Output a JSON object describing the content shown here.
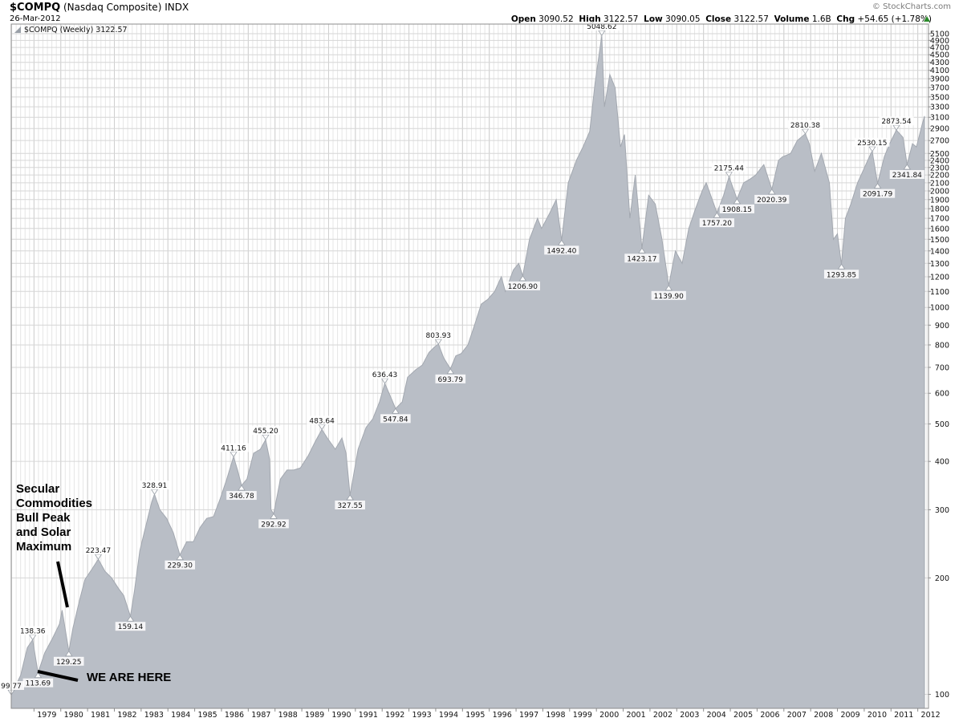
{
  "header": {
    "symbol": "$COMPQ",
    "name": "(Nasdaq Composite)",
    "exchange": "INDX",
    "date": "26-Mar-2012",
    "brand": "© StockCharts.com",
    "open_label": "Open",
    "open": "3090.52",
    "high_label": "High",
    "high": "3122.57",
    "low_label": "Low",
    "low": "3090.05",
    "close_label": "Close",
    "close": "3122.57",
    "volume_label": "Volume",
    "volume": "1.6B",
    "chg_label": "Chg",
    "chg": "+54.65 (+1.78%)"
  },
  "legend": "$COMPQ (Weekly) 3122.57",
  "annotations": {
    "peak": [
      "Secular",
      "Commodities",
      "Bull Peak",
      "and Solar",
      "Maximum"
    ],
    "here": "WE ARE HERE"
  },
  "colors": {
    "area": "#b9bec6",
    "area_edge": "#a3a8b0",
    "grid": "#d6d6d6",
    "up_triangle": "#2a8a2a"
  },
  "chart_data": {
    "type": "area",
    "title": "$COMPQ (Nasdaq Composite)",
    "y_scale": "log",
    "ylim": [
      92,
      5400
    ],
    "xlim": [
      1978.15,
      2012.4
    ],
    "y_ticks": [
      100,
      200,
      300,
      400,
      500,
      600,
      700,
      800,
      900,
      1000,
      1100,
      1200,
      1300,
      1400,
      1500,
      1600,
      1700,
      1800,
      1900,
      2000,
      2100,
      2200,
      2300,
      2400,
      2500,
      2700,
      2900,
      3100,
      3300,
      3500,
      3700,
      3900,
      4100,
      4300,
      4500,
      4700,
      4900,
      5100
    ],
    "x_ticks": [
      1979,
      1980,
      1981,
      1982,
      1983,
      1984,
      1985,
      1986,
      1987,
      1988,
      1989,
      1990,
      1991,
      1992,
      1993,
      1994,
      1995,
      1996,
      1997,
      1998,
      1999,
      2000,
      2001,
      2002,
      2003,
      2004,
      2005,
      2006,
      2007,
      2008,
      2009,
      2010,
      2011,
      2012
    ],
    "series": [
      {
        "values": [
          [
            1978.15,
            99.77
          ],
          [
            1978.5,
            112
          ],
          [
            1978.75,
            132
          ],
          [
            1978.95,
            138.36
          ],
          [
            1979.15,
            113.69
          ],
          [
            1979.4,
            128
          ],
          [
            1979.7,
            140
          ],
          [
            1979.95,
            152
          ],
          [
            1980.05,
            165
          ],
          [
            1980.15,
            150
          ],
          [
            1980.3,
            129.25
          ],
          [
            1980.45,
            148
          ],
          [
            1980.7,
            175
          ],
          [
            1980.9,
            198
          ],
          [
            1981.15,
            210
          ],
          [
            1981.4,
            223.47
          ],
          [
            1981.65,
            208
          ],
          [
            1981.9,
            200
          ],
          [
            1982.15,
            188
          ],
          [
            1982.35,
            180
          ],
          [
            1982.6,
            159.14
          ],
          [
            1982.75,
            185
          ],
          [
            1982.95,
            235
          ],
          [
            1983.15,
            268
          ],
          [
            1983.4,
            315
          ],
          [
            1983.5,
            328.91
          ],
          [
            1983.7,
            300
          ],
          [
            1983.95,
            285
          ],
          [
            1984.2,
            262
          ],
          [
            1984.45,
            229.3
          ],
          [
            1984.7,
            248
          ],
          [
            1984.95,
            248
          ],
          [
            1985.2,
            270
          ],
          [
            1985.45,
            285
          ],
          [
            1985.7,
            288
          ],
          [
            1985.95,
            320
          ],
          [
            1986.2,
            360
          ],
          [
            1986.45,
            411.16
          ],
          [
            1986.6,
            380
          ],
          [
            1986.75,
            346.78
          ],
          [
            1986.95,
            360
          ],
          [
            1987.2,
            420
          ],
          [
            1987.45,
            430
          ],
          [
            1987.65,
            455.2
          ],
          [
            1987.8,
            405
          ],
          [
            1987.85,
            300
          ],
          [
            1987.95,
            292.92
          ],
          [
            1988.2,
            360
          ],
          [
            1988.45,
            380
          ],
          [
            1988.7,
            380
          ],
          [
            1988.95,
            385
          ],
          [
            1989.25,
            415
          ],
          [
            1989.5,
            450
          ],
          [
            1989.75,
            483.64
          ],
          [
            1989.95,
            460
          ],
          [
            1990.25,
            430
          ],
          [
            1990.5,
            460
          ],
          [
            1990.65,
            420
          ],
          [
            1990.8,
            327.55
          ],
          [
            1990.95,
            375
          ],
          [
            1991.1,
            430
          ],
          [
            1991.4,
            490
          ],
          [
            1991.65,
            515
          ],
          [
            1991.9,
            570
          ],
          [
            1992.1,
            636.43
          ],
          [
            1992.35,
            580
          ],
          [
            1992.5,
            547.84
          ],
          [
            1992.75,
            570
          ],
          [
            1992.95,
            660
          ],
          [
            1993.25,
            690
          ],
          [
            1993.5,
            710
          ],
          [
            1993.75,
            765
          ],
          [
            1993.95,
            790
          ],
          [
            1994.1,
            803.93
          ],
          [
            1994.3,
            740
          ],
          [
            1994.55,
            693.79
          ],
          [
            1994.75,
            750
          ],
          [
            1994.95,
            760
          ],
          [
            1995.2,
            800
          ],
          [
            1995.45,
            900
          ],
          [
            1995.7,
            1020
          ],
          [
            1995.95,
            1050
          ],
          [
            1996.2,
            1100
          ],
          [
            1996.45,
            1200
          ],
          [
            1996.6,
            1100
          ],
          [
            1996.9,
            1250
          ],
          [
            1997.1,
            1300
          ],
          [
            1997.25,
            1206.9
          ],
          [
            1997.5,
            1500
          ],
          [
            1997.8,
            1700
          ],
          [
            1997.95,
            1600
          ],
          [
            1998.25,
            1750
          ],
          [
            1998.5,
            1900
          ],
          [
            1998.7,
            1492.4
          ],
          [
            1998.95,
            2100
          ],
          [
            1999.25,
            2400
          ],
          [
            1999.5,
            2600
          ],
          [
            1999.75,
            2850
          ],
          [
            1999.95,
            3800
          ],
          [
            2000.1,
            4500
          ],
          [
            2000.2,
            5048.62
          ],
          [
            2000.3,
            3300
          ],
          [
            2000.5,
            4000
          ],
          [
            2000.7,
            3700
          ],
          [
            2000.9,
            2600
          ],
          [
            2001.05,
            2800
          ],
          [
            2001.25,
            1700
          ],
          [
            2001.45,
            2200
          ],
          [
            2001.7,
            1423.17
          ],
          [
            2001.95,
            1950
          ],
          [
            2002.2,
            1850
          ],
          [
            2002.45,
            1500
          ],
          [
            2002.7,
            1139.9
          ],
          [
            2002.95,
            1400
          ],
          [
            2003.2,
            1300
          ],
          [
            2003.45,
            1600
          ],
          [
            2003.7,
            1800
          ],
          [
            2003.95,
            2000
          ],
          [
            2004.1,
            2100
          ],
          [
            2004.5,
            1757.2
          ],
          [
            2004.75,
            1950
          ],
          [
            2004.95,
            2175.44
          ],
          [
            2005.25,
            1908.15
          ],
          [
            2005.5,
            2100
          ],
          [
            2005.75,
            2150
          ],
          [
            2005.95,
            2200
          ],
          [
            2006.25,
            2340
          ],
          [
            2006.55,
            2020.39
          ],
          [
            2006.8,
            2400
          ],
          [
            2006.95,
            2450
          ],
          [
            2007.25,
            2500
          ],
          [
            2007.5,
            2700
          ],
          [
            2007.8,
            2810.38
          ],
          [
            2007.95,
            2650
          ],
          [
            2008.15,
            2250
          ],
          [
            2008.4,
            2500
          ],
          [
            2008.7,
            2100
          ],
          [
            2008.85,
            1500
          ],
          [
            2009.0,
            1550
          ],
          [
            2009.15,
            1293.85
          ],
          [
            2009.3,
            1700
          ],
          [
            2009.5,
            1850
          ],
          [
            2009.75,
            2100
          ],
          [
            2009.95,
            2250
          ],
          [
            2010.25,
            2500
          ],
          [
            2010.3,
            2530.15
          ],
          [
            2010.5,
            2091.79
          ],
          [
            2010.75,
            2450
          ],
          [
            2010.95,
            2650
          ],
          [
            2011.2,
            2873.54
          ],
          [
            2011.45,
            2750
          ],
          [
            2011.6,
            2341.84
          ],
          [
            2011.8,
            2650
          ],
          [
            2011.95,
            2600
          ],
          [
            2012.15,
            2950
          ],
          [
            2012.25,
            3122.57
          ]
        ]
      }
    ],
    "labels": [
      {
        "x": 1978.15,
        "y": 99.77,
        "text": "99.77"
      },
      {
        "x": 1978.95,
        "y": 138.36,
        "text": "138.36"
      },
      {
        "x": 1979.15,
        "y": 113.69,
        "text": "113.69"
      },
      {
        "x": 1980.3,
        "y": 129.25,
        "text": "129.25"
      },
      {
        "x": 1981.4,
        "y": 223.47,
        "text": "223.47"
      },
      {
        "x": 1982.6,
        "y": 159.14,
        "text": "159.14"
      },
      {
        "x": 1983.5,
        "y": 328.91,
        "text": "328.91"
      },
      {
        "x": 1984.45,
        "y": 229.3,
        "text": "229.30"
      },
      {
        "x": 1986.45,
        "y": 411.16,
        "text": "411.16"
      },
      {
        "x": 1986.75,
        "y": 346.78,
        "text": "346.78"
      },
      {
        "x": 1987.65,
        "y": 455.2,
        "text": "455.20"
      },
      {
        "x": 1987.95,
        "y": 292.92,
        "text": "292.92"
      },
      {
        "x": 1989.75,
        "y": 483.64,
        "text": "483.64"
      },
      {
        "x": 1990.8,
        "y": 327.55,
        "text": "327.55"
      },
      {
        "x": 1992.1,
        "y": 636.43,
        "text": "636.43"
      },
      {
        "x": 1992.5,
        "y": 547.84,
        "text": "547.84"
      },
      {
        "x": 1994.1,
        "y": 803.93,
        "text": "803.93"
      },
      {
        "x": 1994.55,
        "y": 693.79,
        "text": "693.79"
      },
      {
        "x": 1997.25,
        "y": 1206.9,
        "text": "1206.90"
      },
      {
        "x": 1998.7,
        "y": 1492.4,
        "text": "1492.40"
      },
      {
        "x": 2000.2,
        "y": 5048.62,
        "text": "5048.62"
      },
      {
        "x": 2001.7,
        "y": 1423.17,
        "text": "1423.17"
      },
      {
        "x": 2002.7,
        "y": 1139.9,
        "text": "1139.90"
      },
      {
        "x": 2004.5,
        "y": 1757.2,
        "text": "1757.20"
      },
      {
        "x": 2004.95,
        "y": 2175.44,
        "text": "2175.44"
      },
      {
        "x": 2005.25,
        "y": 1908.15,
        "text": "1908.15"
      },
      {
        "x": 2006.55,
        "y": 2020.39,
        "text": "2020.39"
      },
      {
        "x": 2007.8,
        "y": 2810.38,
        "text": "2810.38"
      },
      {
        "x": 2009.15,
        "y": 1293.85,
        "text": "1293.85"
      },
      {
        "x": 2010.3,
        "y": 2530.15,
        "text": "2530.15"
      },
      {
        "x": 2010.5,
        "y": 2091.79,
        "text": "2091.79"
      },
      {
        "x": 2011.2,
        "y": 2873.54,
        "text": "2873.54"
      },
      {
        "x": 2011.6,
        "y": 2341.84,
        "text": "2341.84"
      }
    ]
  }
}
